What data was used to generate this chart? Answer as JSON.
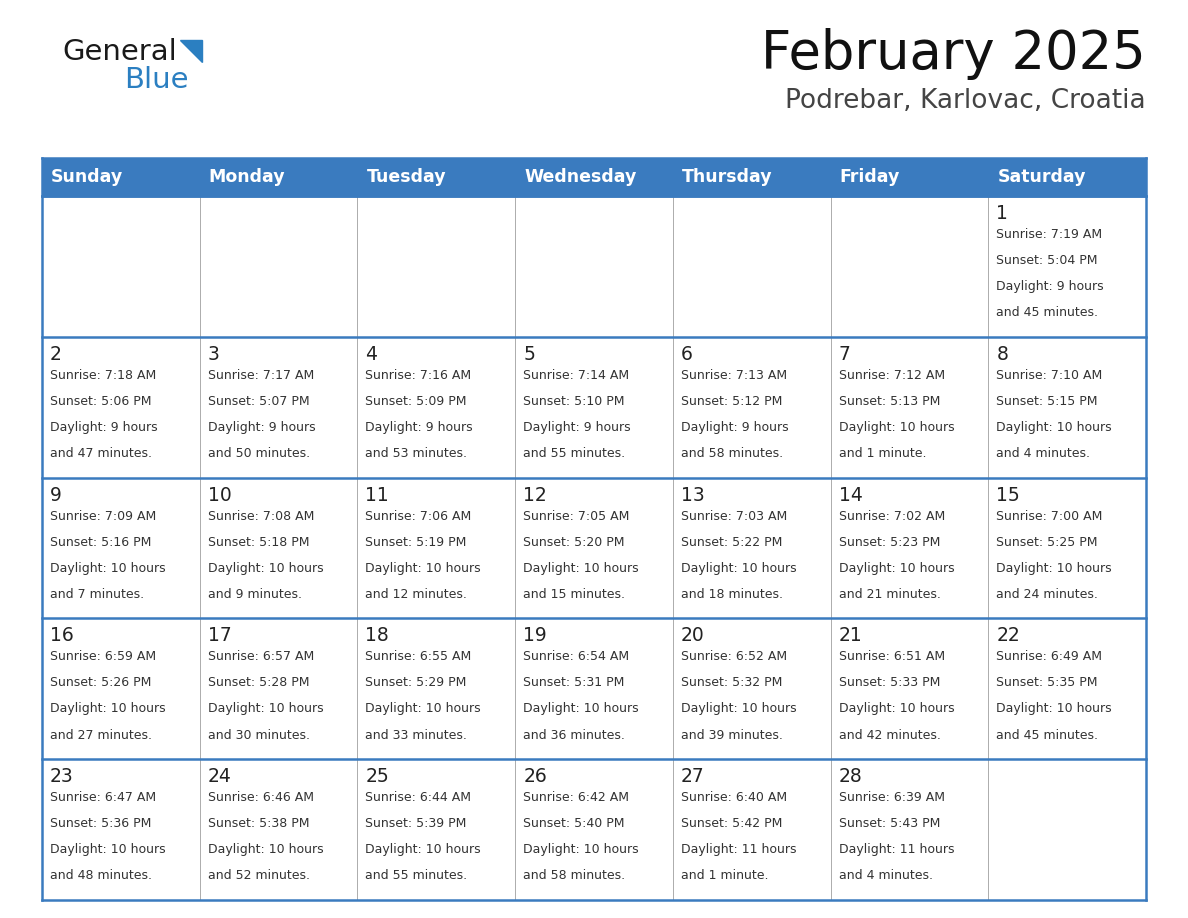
{
  "title": "February 2025",
  "subtitle": "Podrebar, Karlovac, Croatia",
  "header_bg": "#3a7bbf",
  "header_text_color": "#ffffff",
  "cell_bg": "#ffffff",
  "border_color": "#3a7bbf",
  "inner_border_color": "#aaaaaa",
  "text_color": "#333333",
  "day_number_color": "#222222",
  "days_of_week": [
    "Sunday",
    "Monday",
    "Tuesday",
    "Wednesday",
    "Thursday",
    "Friday",
    "Saturday"
  ],
  "weeks": [
    [
      {
        "day": "",
        "info": ""
      },
      {
        "day": "",
        "info": ""
      },
      {
        "day": "",
        "info": ""
      },
      {
        "day": "",
        "info": ""
      },
      {
        "day": "",
        "info": ""
      },
      {
        "day": "",
        "info": ""
      },
      {
        "day": "1",
        "info": "Sunrise: 7:19 AM\nSunset: 5:04 PM\nDaylight: 9 hours\nand 45 minutes."
      }
    ],
    [
      {
        "day": "2",
        "info": "Sunrise: 7:18 AM\nSunset: 5:06 PM\nDaylight: 9 hours\nand 47 minutes."
      },
      {
        "day": "3",
        "info": "Sunrise: 7:17 AM\nSunset: 5:07 PM\nDaylight: 9 hours\nand 50 minutes."
      },
      {
        "day": "4",
        "info": "Sunrise: 7:16 AM\nSunset: 5:09 PM\nDaylight: 9 hours\nand 53 minutes."
      },
      {
        "day": "5",
        "info": "Sunrise: 7:14 AM\nSunset: 5:10 PM\nDaylight: 9 hours\nand 55 minutes."
      },
      {
        "day": "6",
        "info": "Sunrise: 7:13 AM\nSunset: 5:12 PM\nDaylight: 9 hours\nand 58 minutes."
      },
      {
        "day": "7",
        "info": "Sunrise: 7:12 AM\nSunset: 5:13 PM\nDaylight: 10 hours\nand 1 minute."
      },
      {
        "day": "8",
        "info": "Sunrise: 7:10 AM\nSunset: 5:15 PM\nDaylight: 10 hours\nand 4 minutes."
      }
    ],
    [
      {
        "day": "9",
        "info": "Sunrise: 7:09 AM\nSunset: 5:16 PM\nDaylight: 10 hours\nand 7 minutes."
      },
      {
        "day": "10",
        "info": "Sunrise: 7:08 AM\nSunset: 5:18 PM\nDaylight: 10 hours\nand 9 minutes."
      },
      {
        "day": "11",
        "info": "Sunrise: 7:06 AM\nSunset: 5:19 PM\nDaylight: 10 hours\nand 12 minutes."
      },
      {
        "day": "12",
        "info": "Sunrise: 7:05 AM\nSunset: 5:20 PM\nDaylight: 10 hours\nand 15 minutes."
      },
      {
        "day": "13",
        "info": "Sunrise: 7:03 AM\nSunset: 5:22 PM\nDaylight: 10 hours\nand 18 minutes."
      },
      {
        "day": "14",
        "info": "Sunrise: 7:02 AM\nSunset: 5:23 PM\nDaylight: 10 hours\nand 21 minutes."
      },
      {
        "day": "15",
        "info": "Sunrise: 7:00 AM\nSunset: 5:25 PM\nDaylight: 10 hours\nand 24 minutes."
      }
    ],
    [
      {
        "day": "16",
        "info": "Sunrise: 6:59 AM\nSunset: 5:26 PM\nDaylight: 10 hours\nand 27 minutes."
      },
      {
        "day": "17",
        "info": "Sunrise: 6:57 AM\nSunset: 5:28 PM\nDaylight: 10 hours\nand 30 minutes."
      },
      {
        "day": "18",
        "info": "Sunrise: 6:55 AM\nSunset: 5:29 PM\nDaylight: 10 hours\nand 33 minutes."
      },
      {
        "day": "19",
        "info": "Sunrise: 6:54 AM\nSunset: 5:31 PM\nDaylight: 10 hours\nand 36 minutes."
      },
      {
        "day": "20",
        "info": "Sunrise: 6:52 AM\nSunset: 5:32 PM\nDaylight: 10 hours\nand 39 minutes."
      },
      {
        "day": "21",
        "info": "Sunrise: 6:51 AM\nSunset: 5:33 PM\nDaylight: 10 hours\nand 42 minutes."
      },
      {
        "day": "22",
        "info": "Sunrise: 6:49 AM\nSunset: 5:35 PM\nDaylight: 10 hours\nand 45 minutes."
      }
    ],
    [
      {
        "day": "23",
        "info": "Sunrise: 6:47 AM\nSunset: 5:36 PM\nDaylight: 10 hours\nand 48 minutes."
      },
      {
        "day": "24",
        "info": "Sunrise: 6:46 AM\nSunset: 5:38 PM\nDaylight: 10 hours\nand 52 minutes."
      },
      {
        "day": "25",
        "info": "Sunrise: 6:44 AM\nSunset: 5:39 PM\nDaylight: 10 hours\nand 55 minutes."
      },
      {
        "day": "26",
        "info": "Sunrise: 6:42 AM\nSunset: 5:40 PM\nDaylight: 10 hours\nand 58 minutes."
      },
      {
        "day": "27",
        "info": "Sunrise: 6:40 AM\nSunset: 5:42 PM\nDaylight: 11 hours\nand 1 minute."
      },
      {
        "day": "28",
        "info": "Sunrise: 6:39 AM\nSunset: 5:43 PM\nDaylight: 11 hours\nand 4 minutes."
      },
      {
        "day": "",
        "info": ""
      }
    ]
  ],
  "logo_text1": "General",
  "logo_text2": "Blue",
  "logo_text_color1": "#1a1a1a",
  "logo_text_color2": "#2b7fc1",
  "logo_triangle_color": "#2b7fc1",
  "fig_width": 11.88,
  "fig_height": 9.18,
  "dpi": 100
}
